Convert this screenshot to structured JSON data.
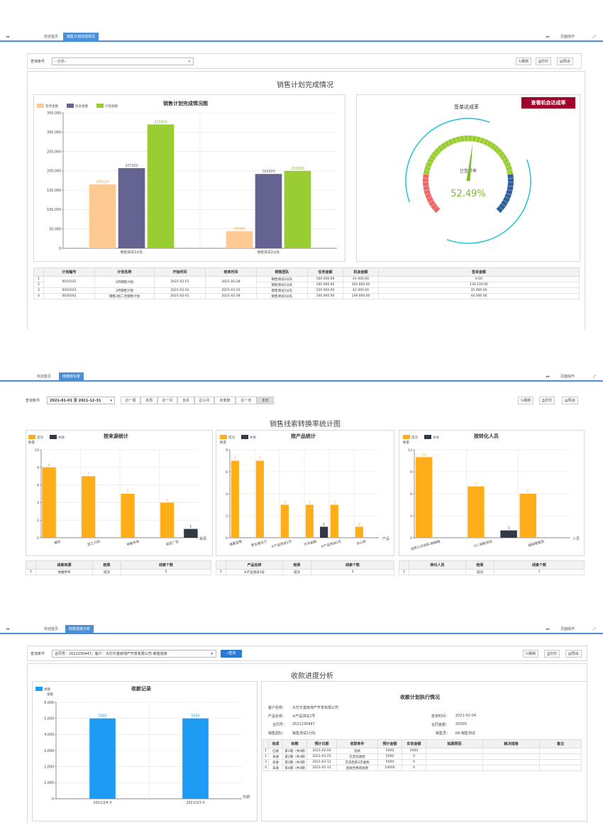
{
  "shot1": {
    "tabs": {
      "home": "欢迎首页",
      "active": "销售计划完成情况",
      "page_ops": "页面操作"
    },
    "query_label": "查询条件",
    "query_placeholder": "--全部--",
    "toolbar": {
      "refresh": "刷新",
      "print": "打印",
      "export": "导出"
    },
    "page_title": "销售计划完成情况",
    "bar_chart": {
      "title": "销售计划完成情况图",
      "legend": [
        "签单金额",
        "机会金额",
        "计划金额"
      ]
    },
    "gauge": {
      "title": "签单达成率",
      "button": "查看机会达成率",
      "label": "已签单率",
      "value_text": "52.49%"
    },
    "table": {
      "headers": [
        "",
        "计划编号",
        "计划名称",
        "开始时间",
        "结束时间",
        "销售团队",
        "任务金额",
        "机会金额",
        "签单金额"
      ],
      "rows": [
        [
          "1",
          "0010102",
          "2月销售计划",
          "2021-02-01",
          "2021-02-28",
          "销售测试2分队",
          "100 000.00",
          "43 000.00",
          "0.00"
        ],
        [
          "2",
          "",
          "",
          "",
          "",
          "销售测试1分队",
          "100 000.00",
          "165 000.00",
          "130 120.00"
        ],
        [
          "3",
          "0010103",
          "3月销售计划",
          "2021-03-01",
          "2021-03-31",
          "销售测试1分队",
          "220 000.00",
          "42 000.00",
          "35 000.00"
        ],
        [
          "4",
          "0020202",
          "销售2组二月销售计划",
          "2021-02-01",
          "2021-02-28",
          "销售测试2分队",
          "100 000.00",
          "149 000.00",
          "44 300.00"
        ]
      ]
    }
  },
  "shot2": {
    "tabs": {
      "home": "欢迎首页",
      "active": "线索转化率",
      "page_ops": "页面操作"
    },
    "query_label": "查询条件",
    "date_range": "2021-01-01 至 2021-12-31",
    "ranges": [
      "近一周",
      "本周",
      "近一月",
      "本月",
      "近三月",
      "本季度",
      "近一年",
      "本年"
    ],
    "toolbar": {
      "refresh": "刷新",
      "print": "打印",
      "export": "导出"
    },
    "page_title": "销售线索转换率统计图",
    "legend": [
      "成功",
      "失败"
    ],
    "ylabel": "数量",
    "source_chart": {
      "title": "按来源统计",
      "xlabel": "来源"
    },
    "product_chart": {
      "title": "按产品统计",
      "xlabel": "产品"
    },
    "person_chart": {
      "title": "按转化人员",
      "xlabel": "人员"
    },
    "tables": {
      "source": {
        "headers": [
          "",
          "线索来源",
          "结果",
          "线索个数"
        ],
        "row": [
          "1",
          "地推传单",
          "成功",
          "5"
        ]
      },
      "product": {
        "headers": [
          "",
          "产品名称",
          "结果",
          "线索个数"
        ],
        "row": [
          "1",
          "※产品测试1号",
          "成功",
          "3"
        ]
      },
      "person": {
        "headers": [
          "",
          "转化人员",
          "结果",
          "线索个数"
        ],
        "row": [
          "1",
          "",
          "成功",
          "7"
        ]
      }
    }
  },
  "shot3": {
    "tabs": {
      "home": "欢迎首页",
      "active": "收款进度分析",
      "page_ops": "页面操作"
    },
    "query_label": "查询条件",
    "query_value": "合同号：2021230447；客户：大打乐基房地产开发有限公司-谢富连锁",
    "search_btn": "查询",
    "toolbar": {
      "refresh": "刷新",
      "print": "打印",
      "export": "导出"
    },
    "page_title": "收款进度分析",
    "chart": {
      "title": "收款记录",
      "legend": "金额",
      "ylabel": "金额",
      "xlabel": "日期"
    },
    "plan": {
      "title": "收款计划执行情况",
      "customer_label": "客户名称：",
      "customer": "大打乐基房地产开发有限公司",
      "product_label": "产品名称：",
      "product": "※产品测试2号",
      "contract_label": "合同号：",
      "contract": "2021230447",
      "team_label": "销售团队：",
      "team": "销售测试1分队",
      "sign_label": "签单时间：",
      "sign": "2021-02-04",
      "amount_label": "合同金额：",
      "amount": "25000",
      "seller_label": "销售员：",
      "seller": "KK-销售测试"
    },
    "table": {
      "headers": [
        "",
        "完成",
        "标题",
        "预计日期",
        "收款条件",
        "预计金额",
        "实收金额",
        "延期原因",
        "解决措施",
        "备注"
      ],
      "rows": [
        [
          "1",
          "已收",
          "第1期（共4期",
          "2021-02-04",
          "首款",
          "5000",
          "5000",
          "",
          "",
          ""
        ],
        [
          "2",
          "未收",
          "第2期（共4期",
          "2021-03-25",
          "交货前收款",
          "5000",
          "0",
          "",
          "",
          ""
        ],
        [
          "3",
          "未收",
          "第3期（共4期",
          "2021-03-31",
          "交货后第3次收款",
          "5000",
          "0",
          "",
          "",
          ""
        ],
        [
          "4",
          "未收",
          "第4期（共4期",
          "2021-05-13",
          "验收合格后收款",
          "10000",
          "0",
          "",
          "",
          ""
        ]
      ]
    }
  },
  "chart_data": [
    {
      "type": "bar",
      "title": "销售计划完成情况图",
      "categories": [
        "销售测试1分队",
        "销售测试2分队"
      ],
      "series": [
        {
          "name": "签单金额",
          "values": [
            165120,
            44300
          ],
          "color": "#ffc994"
        },
        {
          "name": "机会金额",
          "values": [
            207000,
            192000
          ],
          "color": "#646391"
        },
        {
          "name": "计划金额",
          "values": [
            320000,
            200000
          ],
          "color": "#9acd32"
        }
      ],
      "ylim": [
        0,
        350000
      ],
      "yticks": [
        "0",
        "50,000",
        "100,000",
        "150,000",
        "200,000",
        "250,000",
        "300,000",
        "350,000"
      ],
      "data_labels": [
        [
          "165120",
          "44300"
        ],
        [
          "207000",
          "192000"
        ],
        [
          "320000",
          "200000"
        ]
      ]
    },
    {
      "type": "bar",
      "title": "按来源统计",
      "categories": [
        "展会",
        "员工介绍",
        "地推传单",
        "网页广告"
      ],
      "series": [
        {
          "name": "成功",
          "values": [
            8,
            7,
            5,
            4
          ],
          "color": "#ffae19"
        },
        {
          "name": "失败",
          "values": [
            0,
            0,
            0,
            1
          ],
          "color": "#323a45"
        }
      ],
      "ylim": [
        0,
        10
      ],
      "yticks": [
        "0",
        "2",
        "4",
        "6",
        "8",
        "10"
      ]
    },
    {
      "type": "bar",
      "title": "按产品统计",
      "categories": [
        "诸葛连弩",
        "青龙偃月刀",
        "※产品测试1号",
        "方天画戟",
        "※产品测试2号",
        "办公杯"
      ],
      "series": [
        {
          "name": "成功",
          "values": [
            7,
            7,
            3,
            3,
            3,
            1
          ],
          "color": "#ffae19"
        },
        {
          "name": "失败",
          "values": [
            0,
            0,
            0,
            1,
            0,
            0
          ],
          "color": "#323a45"
        }
      ],
      "ylim": [
        0,
        8
      ],
      "yticks": [
        "0",
        "2",
        "4",
        "6",
        "8"
      ]
    },
    {
      "type": "bar",
      "title": "按转化人员",
      "categories": [
        "试用公司领导-韩梅梅",
        "CC-销售测试",
        "超级管理员"
      ],
      "series": [
        {
          "name": "成功",
          "values": [
            11,
            7,
            6
          ],
          "color": "#ffae19"
        },
        {
          "name": "失败",
          "values": [
            0,
            1,
            0
          ],
          "color": "#323a45"
        }
      ],
      "ylim": [
        0,
        12
      ],
      "yticks": [
        "0",
        "3",
        "6",
        "9",
        "12"
      ]
    },
    {
      "type": "bar",
      "title": "收款记录",
      "categories": [
        "2021/2/4 0",
        "2021/3/3 0"
      ],
      "series": [
        {
          "name": "金额",
          "values": [
            5000,
            5000
          ],
          "color": "#1e9cf3"
        }
      ],
      "ylim": [
        0,
        6000
      ],
      "yticks": [
        "0",
        "1,000",
        "2,000",
        "3,000",
        "4,000",
        "5,000",
        "6,000"
      ]
    },
    {
      "type": "gauge",
      "title": "签单达成率",
      "value": 52.49,
      "label": "已签单率",
      "color_ranges": [
        "#f06666",
        "#9acd32",
        "#2e5e99"
      ]
    }
  ]
}
